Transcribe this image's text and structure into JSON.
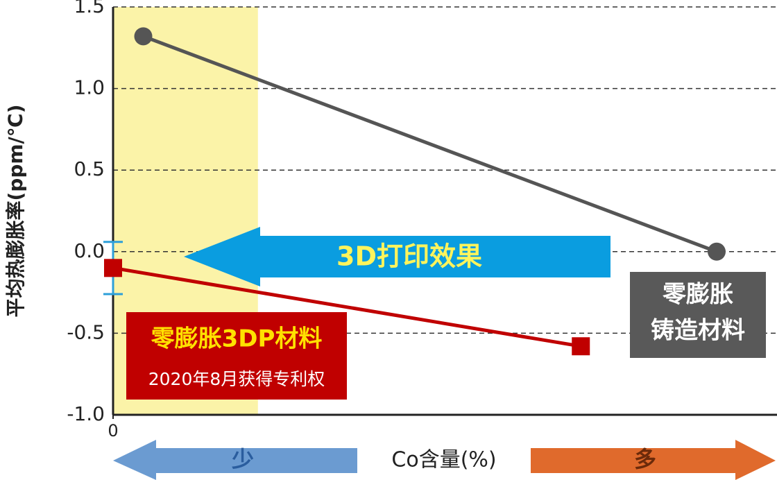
{
  "chart_data": {
    "type": "line",
    "y_label": "平均热膨胀率(ppm/℃)",
    "x_label": "Co含量(%)",
    "xlim": [
      0,
      22
    ],
    "xticks": [
      0
    ],
    "ylim": [
      -1.0,
      1.5
    ],
    "yticks": [
      1.5,
      {
        "value": 1.0,
        "label": "1.0"
      },
      0.5,
      {
        "value": 0.0,
        "label": "0.0"
      },
      -0.5,
      {
        "value": -1.0,
        "label": "-1.0"
      }
    ],
    "grid": true,
    "highlight_x": [
      0,
      4.8
    ],
    "highlight_color": "#fbf3a8",
    "series": [
      {
        "color": "#555555",
        "marker": "circle",
        "x": [
          1,
          20
        ],
        "values": [
          1.32,
          0.0
        ]
      },
      {
        "color": "#c00000",
        "marker": "square",
        "x": [
          0,
          15.5
        ],
        "values": [
          -0.1,
          -0.58
        ],
        "errors": [
          0.16,
          null
        ],
        "error_color": "#2d9fd9"
      }
    ],
    "annotations": {
      "effect_arrow": "3D打印效果",
      "red_box": [
        "零膨胀3DP材料",
        "2020年8月获得专利权"
      ],
      "gray_box": [
        "零膨胀",
        "铸造材料"
      ],
      "low": "少",
      "high": "多"
    }
  }
}
